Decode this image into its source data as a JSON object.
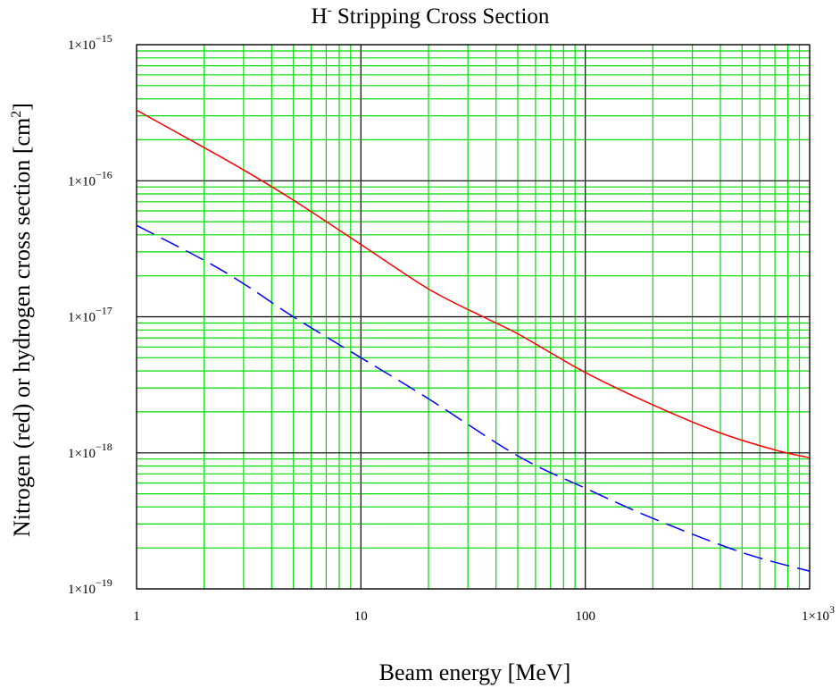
{
  "chart_data": {
    "type": "line",
    "title": {
      "main": "H",
      "sup": "-",
      "rest": " Stripping Cross Section"
    },
    "xlabel": "Beam energy [MeV]",
    "ylabel": {
      "main": "Nitrogen (red) or hydrogen cross section [cm",
      "sup": "2",
      "end": "]"
    },
    "xscale": "log",
    "yscale": "log",
    "xlim": [
      1,
      1000
    ],
    "ylim": [
      1e-19,
      1e-15
    ],
    "grid": true,
    "colors": {
      "major_grid": "#000000",
      "minor_grid": "#00dd00",
      "nitrogen": "#ff0000",
      "hydrogen": "#0000ff"
    },
    "x_ticks": [
      {
        "value": 1,
        "label": "1"
      },
      {
        "value": 10,
        "label": "10"
      },
      {
        "value": 100,
        "label": "100"
      },
      {
        "value": 1000,
        "base": "1×10",
        "exp": "3"
      }
    ],
    "y_ticks": [
      {
        "value": 1e-19,
        "base": "1×10",
        "exp": "−19"
      },
      {
        "value": 1e-18,
        "base": "1×10",
        "exp": "−18"
      },
      {
        "value": 1e-17,
        "base": "1×10",
        "exp": "−17"
      },
      {
        "value": 1e-16,
        "base": "1×10",
        "exp": "−16"
      },
      {
        "value": 1e-15,
        "base": "1×10",
        "exp": "−15"
      }
    ],
    "series": [
      {
        "key": "nitrogen",
        "color": "#ff0000",
        "dash": "solid",
        "x": [
          1,
          2,
          3,
          5,
          10,
          20,
          35,
          50,
          100,
          200,
          400,
          700,
          1000
        ],
        "y": [
          3.3e-16,
          1.75e-16,
          1.2e-16,
          7.2e-17,
          3.4e-17,
          1.6e-17,
          1e-17,
          7.5e-18,
          3.9e-18,
          2.25e-18,
          1.4e-18,
          1.05e-18,
          9.2e-19
        ]
      },
      {
        "key": "hydrogen",
        "color": "#0000ff",
        "dash": "dashed",
        "x": [
          1,
          2,
          3,
          5,
          10,
          20,
          50,
          100,
          200,
          500,
          1000
        ],
        "y": [
          4.7e-17,
          2.6e-17,
          1.75e-17,
          1e-17,
          5e-18,
          2.5e-18,
          9.5e-19,
          5.5e-19,
          3.3e-19,
          1.85e-19,
          1.35e-19
        ]
      }
    ]
  }
}
